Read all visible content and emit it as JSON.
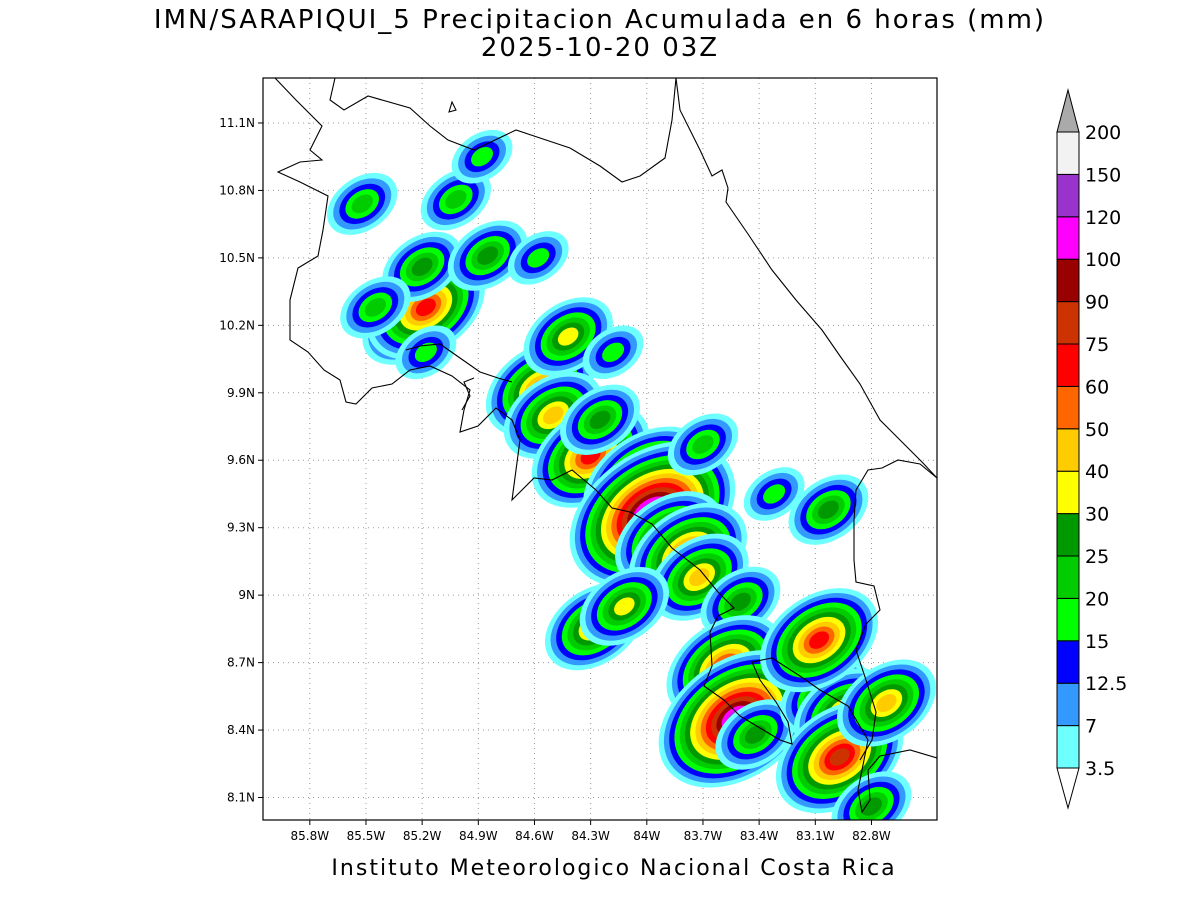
{
  "title": {
    "line1": "IMN/SARAPIQUI_5 Precipitacion Acumulada en 6 horas (mm)",
    "line2": "2025-10-20 03Z"
  },
  "footer": "Instituto Meteorologico Nacional Costa Rica",
  "map": {
    "lon_range": [
      -86.05,
      -82.45
    ],
    "lat_range": [
      8.0,
      11.3
    ],
    "lon_ticks": [
      "85.8W",
      "85.5W",
      "85.2W",
      "84.9W",
      "84.6W",
      "84.3W",
      "84W",
      "83.7W",
      "83.4W",
      "83.1W",
      "82.8W"
    ],
    "lon_tick_values": [
      -85.8,
      -85.5,
      -85.2,
      -84.9,
      -84.6,
      -84.3,
      -84.0,
      -83.7,
      -83.4,
      -83.1,
      -82.8
    ],
    "lat_ticks": [
      "11.1N",
      "10.8N",
      "10.5N",
      "10.2N",
      "9.9N",
      "9.6N",
      "9.3N",
      "9N",
      "8.7N",
      "8.4N",
      "8.1N"
    ],
    "lat_tick_values": [
      11.1,
      10.8,
      10.5,
      10.2,
      9.9,
      9.6,
      9.3,
      9.0,
      8.7,
      8.4,
      8.1
    ],
    "grid": true
  },
  "colorbar": {
    "levels": [
      "3.5",
      "7",
      "12.5",
      "15",
      "20",
      "25",
      "30",
      "40",
      "50",
      "60",
      "75",
      "90",
      "100",
      "120",
      "150",
      "200"
    ],
    "colors": [
      "#6effff",
      "#3399ff",
      "#0000ff",
      "#00ff00",
      "#00cc00",
      "#009900",
      "#ffff00",
      "#ffcc00",
      "#ff6600",
      "#ff0000",
      "#cc3300",
      "#990000",
      "#ff00ff",
      "#9933cc",
      "#f2f2f2",
      "#aaaaaa"
    ]
  },
  "precip_cells": [
    {
      "lon": -85.28,
      "lat": 10.2,
      "mm": 30
    },
    {
      "lon": -85.18,
      "lat": 10.28,
      "mm": 60
    },
    {
      "lon": -85.2,
      "lat": 10.46,
      "mm": 25
    },
    {
      "lon": -85.45,
      "lat": 10.28,
      "mm": 20
    },
    {
      "lon": -85.18,
      "lat": 10.08,
      "mm": 15
    },
    {
      "lon": -85.52,
      "lat": 10.74,
      "mm": 20
    },
    {
      "lon": -85.02,
      "lat": 10.76,
      "mm": 20
    },
    {
      "lon": -84.85,
      "lat": 10.51,
      "mm": 25
    },
    {
      "lon": -84.58,
      "lat": 10.5,
      "mm": 15
    },
    {
      "lon": -84.88,
      "lat": 10.95,
      "mm": 15
    },
    {
      "lon": -84.57,
      "lat": 9.92,
      "mm": 50
    },
    {
      "lon": -84.5,
      "lat": 9.8,
      "mm": 40
    },
    {
      "lon": -84.3,
      "lat": 9.62,
      "mm": 60
    },
    {
      "lon": -84.42,
      "lat": 10.15,
      "mm": 30
    },
    {
      "lon": -84.25,
      "lat": 9.78,
      "mm": 25
    },
    {
      "lon": -84.18,
      "lat": 10.08,
      "mm": 15
    },
    {
      "lon": -84.0,
      "lat": 9.5,
      "mm": 75
    },
    {
      "lon": -83.97,
      "lat": 9.36,
      "mm": 150
    },
    {
      "lon": -83.88,
      "lat": 9.25,
      "mm": 50
    },
    {
      "lon": -83.78,
      "lat": 9.18,
      "mm": 60
    },
    {
      "lon": -83.72,
      "lat": 9.08,
      "mm": 40
    },
    {
      "lon": -83.5,
      "lat": 8.97,
      "mm": 25
    },
    {
      "lon": -83.7,
      "lat": 9.67,
      "mm": 20
    },
    {
      "lon": -84.28,
      "lat": 8.86,
      "mm": 40
    },
    {
      "lon": -84.12,
      "lat": 8.95,
      "mm": 30
    },
    {
      "lon": -83.58,
      "lat": 8.68,
      "mm": 60
    },
    {
      "lon": -83.52,
      "lat": 8.45,
      "mm": 120
    },
    {
      "lon": -83.42,
      "lat": 8.38,
      "mm": 25
    },
    {
      "lon": -83.05,
      "lat": 8.55,
      "mm": 30
    },
    {
      "lon": -82.95,
      "lat": 8.48,
      "mm": 40
    },
    {
      "lon": -82.97,
      "lat": 8.28,
      "mm": 75
    },
    {
      "lon": -83.08,
      "lat": 8.8,
      "mm": 60
    },
    {
      "lon": -82.72,
      "lat": 8.52,
      "mm": 40
    },
    {
      "lon": -83.03,
      "lat": 9.38,
      "mm": 25
    },
    {
      "lon": -83.32,
      "lat": 9.45,
      "mm": 15
    },
    {
      "lon": -82.8,
      "lat": 8.06,
      "mm": 25
    }
  ]
}
